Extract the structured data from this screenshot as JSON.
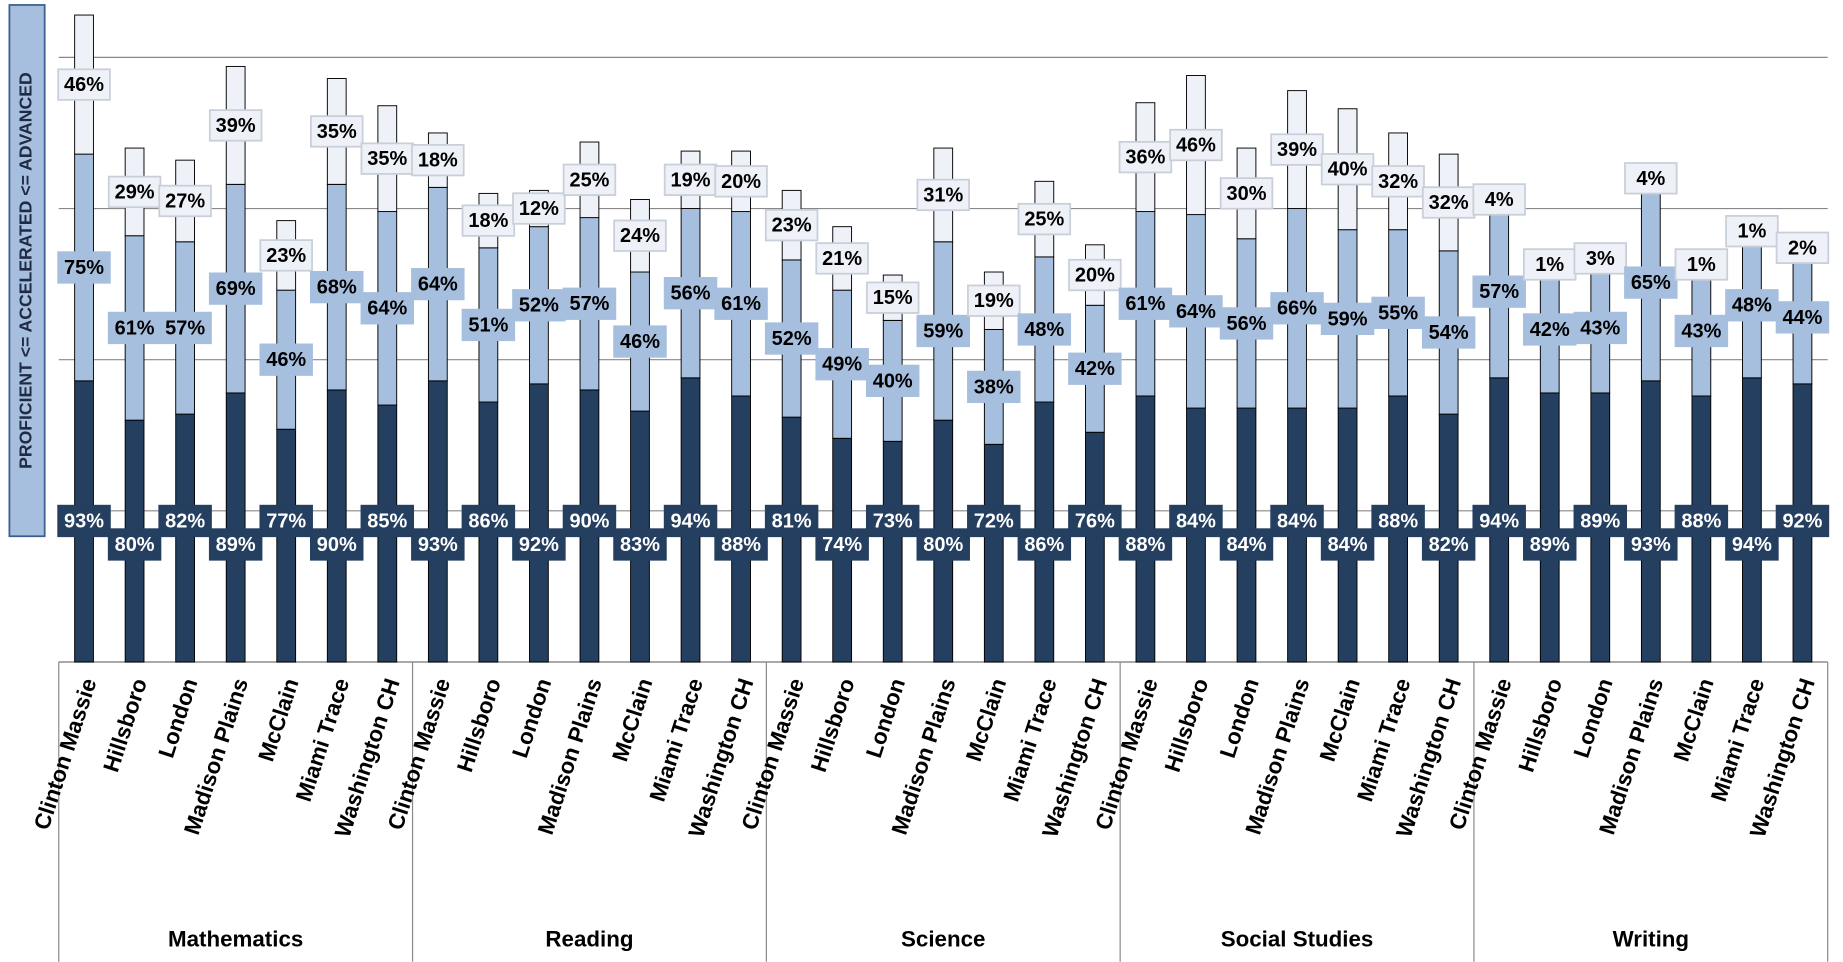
{
  "chart_data": {
    "type": "stacked-bar",
    "y_label": "PROFICIENT <= ACCELERATED <= ADVANCED",
    "groups": [
      {
        "name": "Mathematics",
        "categories": [
          "Clinton Massie",
          "Hillsboro",
          "London",
          "Madison Plains",
          "McClain",
          "Miami Trace",
          "Washington CH"
        ]
      },
      {
        "name": "Reading",
        "categories": [
          "Clinton Massie",
          "Hillsboro",
          "London",
          "Madison Plains",
          "McClain",
          "Miami Trace",
          "Washington CH"
        ]
      },
      {
        "name": "Science",
        "categories": [
          "Clinton Massie",
          "Hillsboro",
          "London",
          "Madison Plains",
          "McClain",
          "Miami Trace",
          "Washington CH"
        ]
      },
      {
        "name": "Social Studies",
        "categories": [
          "Clinton Massie",
          "Hillsboro",
          "London",
          "Madison Plains",
          "McClain",
          "Miami Trace",
          "Washington CH"
        ]
      },
      {
        "name": "Writing",
        "categories": [
          "Clinton Massie",
          "Hillsboro",
          "London",
          "Madison Plains",
          "McClain",
          "Miami Trace",
          "Washington CH"
        ]
      }
    ],
    "series": [
      {
        "color": "#243f60",
        "values": [
          93,
          80,
          82,
          89,
          77,
          90,
          85,
          93,
          86,
          92,
          90,
          83,
          94,
          88,
          81,
          74,
          73,
          80,
          72,
          86,
          76,
          88,
          84,
          84,
          84,
          84,
          88,
          82,
          94,
          89,
          89,
          93,
          88,
          94,
          92
        ],
        "value_labels": [
          "93%",
          "80%",
          "82%",
          "89%",
          "77%",
          "90%",
          "85%",
          "93%",
          "86%",
          "92%",
          "90%",
          "83%",
          "94%",
          "88%",
          "81%",
          "74%",
          "73%",
          "80%",
          "72%",
          "86%",
          "76%",
          "88%",
          "84%",
          "84%",
          "84%",
          "84%",
          "88%",
          "82%",
          "94%",
          "89%",
          "89%",
          "93%",
          "88%",
          "94%",
          "92%"
        ]
      },
      {
        "color": "#a7bfde",
        "values": [
          75,
          61,
          57,
          69,
          46,
          68,
          64,
          64,
          51,
          52,
          57,
          46,
          56,
          61,
          52,
          49,
          40,
          59,
          38,
          48,
          42,
          61,
          64,
          56,
          66,
          59,
          55,
          54,
          57,
          42,
          43,
          65,
          43,
          48,
          44
        ],
        "value_labels": [
          "75%",
          "61%",
          "57%",
          "69%",
          "46%",
          "68%",
          "64%",
          "64%",
          "51%",
          "52%",
          "57%",
          "46%",
          "56%",
          "61%",
          "52%",
          "49%",
          "40%",
          "59%",
          "38%",
          "48%",
          "42%",
          "61%",
          "64%",
          "56%",
          "66%",
          "59%",
          "55%",
          "54%",
          "57%",
          "42%",
          "43%",
          "65%",
          "43%",
          "48%",
          "44%"
        ]
      },
      {
        "color": "#eef2f8",
        "values": [
          46,
          29,
          27,
          39,
          23,
          35,
          35,
          18,
          18,
          12,
          25,
          24,
          19,
          20,
          23,
          21,
          15,
          31,
          19,
          25,
          20,
          36,
          46,
          30,
          39,
          40,
          32,
          32,
          4,
          1,
          3,
          4,
          1,
          1,
          2
        ],
        "value_labels": [
          "46%",
          "29%",
          "27%",
          "39%",
          "23%",
          "35%",
          "35%",
          "18%",
          "18%",
          "12%",
          "25%",
          "24%",
          "19%",
          "20%",
          "23%",
          "21%",
          "15%",
          "31%",
          "19%",
          "25%",
          "20%",
          "36%",
          "46%",
          "30%",
          "39%",
          "40%",
          "32%",
          "32%",
          "4%",
          "1%",
          "3%",
          "4%",
          "1%",
          "1%",
          "2%"
        ]
      }
    ],
    "ylim": [
      0,
      215
    ],
    "yticks": [
      0,
      50,
      100,
      150,
      200
    ],
    "grid": true
  }
}
